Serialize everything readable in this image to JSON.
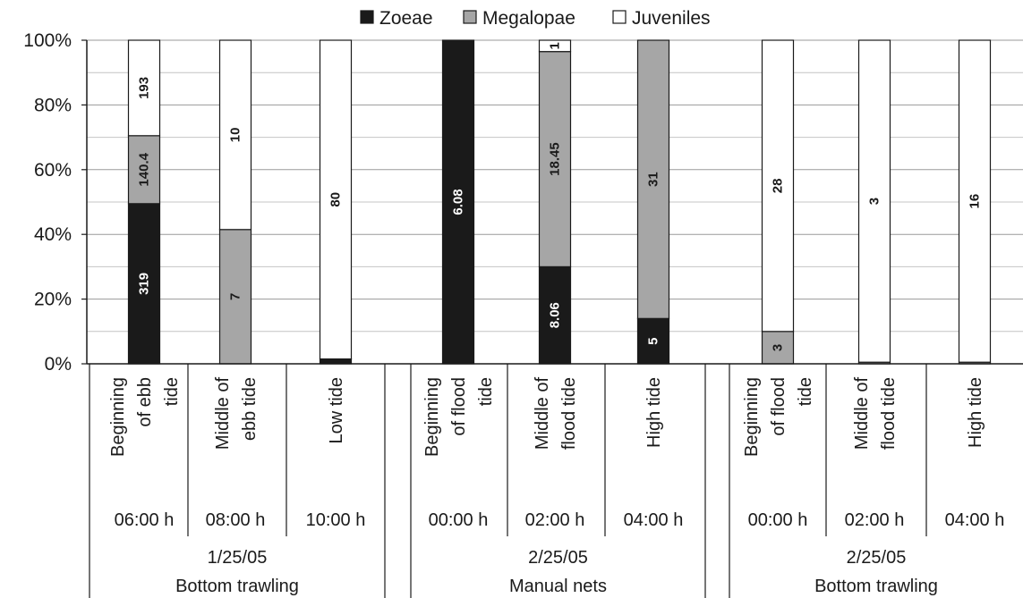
{
  "chart_data": {
    "type": "bar",
    "stacked": "percent",
    "legend": {
      "position": "top",
      "entries": [
        {
          "name": "Zoeae",
          "color": "#1a1a1a"
        },
        {
          "name": "Megalopae",
          "color": "#a6a6a6"
        },
        {
          "name": "Juveniles",
          "color": "#ffffff"
        }
      ]
    },
    "y_ticks": [
      "0%",
      "20%",
      "40%",
      "60%",
      "80%",
      "100%"
    ],
    "ylim": [
      0,
      100
    ],
    "grid": true,
    "categories": [
      {
        "label": "Beginning of ebb tide",
        "lines": [
          "Beginning",
          "of ebb",
          "tide"
        ],
        "time": "06:00 h"
      },
      {
        "label": "Middle of ebb tide",
        "lines": [
          "Middle of",
          "ebb tide"
        ],
        "time": "08:00 h"
      },
      {
        "label": "Low tide",
        "lines": [
          "Low tide"
        ],
        "time": "10:00 h"
      },
      {
        "label": "Beginning of flood tide",
        "lines": [
          "Beginning",
          "of flood",
          "tide"
        ],
        "time": "00:00 h"
      },
      {
        "label": "Middle of flood tide",
        "lines": [
          "Middle of",
          "flood tide"
        ],
        "time": "02:00 h"
      },
      {
        "label": "High tide",
        "lines": [
          "High tide"
        ],
        "time": "04:00 h"
      },
      {
        "label": "Beginning of flood tide",
        "lines": [
          "Beginning",
          "of flood",
          "tide"
        ],
        "time": "00:00 h"
      },
      {
        "label": "Middle of flood tide",
        "lines": [
          "Middle of",
          "flood tide"
        ],
        "time": "02:00 h"
      },
      {
        "label": "High tide",
        "lines": [
          "High tide"
        ],
        "time": "04:00 h"
      }
    ],
    "groups": [
      {
        "date": "1/25/05",
        "method": "Bottom trawling",
        "categories": [
          0,
          1,
          2
        ]
      },
      {
        "date": "2/25/05",
        "method": "Manual nets",
        "categories": [
          3,
          4,
          5
        ]
      },
      {
        "date": "2/25/05",
        "method": "Bottom trawling",
        "categories": [
          6,
          7,
          8
        ]
      }
    ],
    "series": [
      {
        "name": "Zoeae",
        "percent": [
          49.5,
          0,
          1.5,
          100,
          30,
          14,
          0,
          0,
          0
        ],
        "labels": [
          "319",
          "",
          "",
          "6.08",
          "8.06",
          "5",
          "",
          "",
          ""
        ]
      },
      {
        "name": "Megalopae",
        "percent": [
          21,
          41.5,
          0,
          0,
          66.5,
          86,
          10,
          0.5,
          0.5
        ],
        "labels": [
          "140.4",
          "7",
          "",
          "",
          "18.45",
          "31",
          "3",
          "",
          ""
        ]
      },
      {
        "name": "Juveniles",
        "percent": [
          29.5,
          58.5,
          98.5,
          0,
          3.5,
          0,
          90,
          99.5,
          99.5
        ],
        "labels": [
          "193",
          "10",
          "80",
          "",
          "1",
          "",
          "28",
          "3",
          "16"
        ]
      }
    ]
  }
}
